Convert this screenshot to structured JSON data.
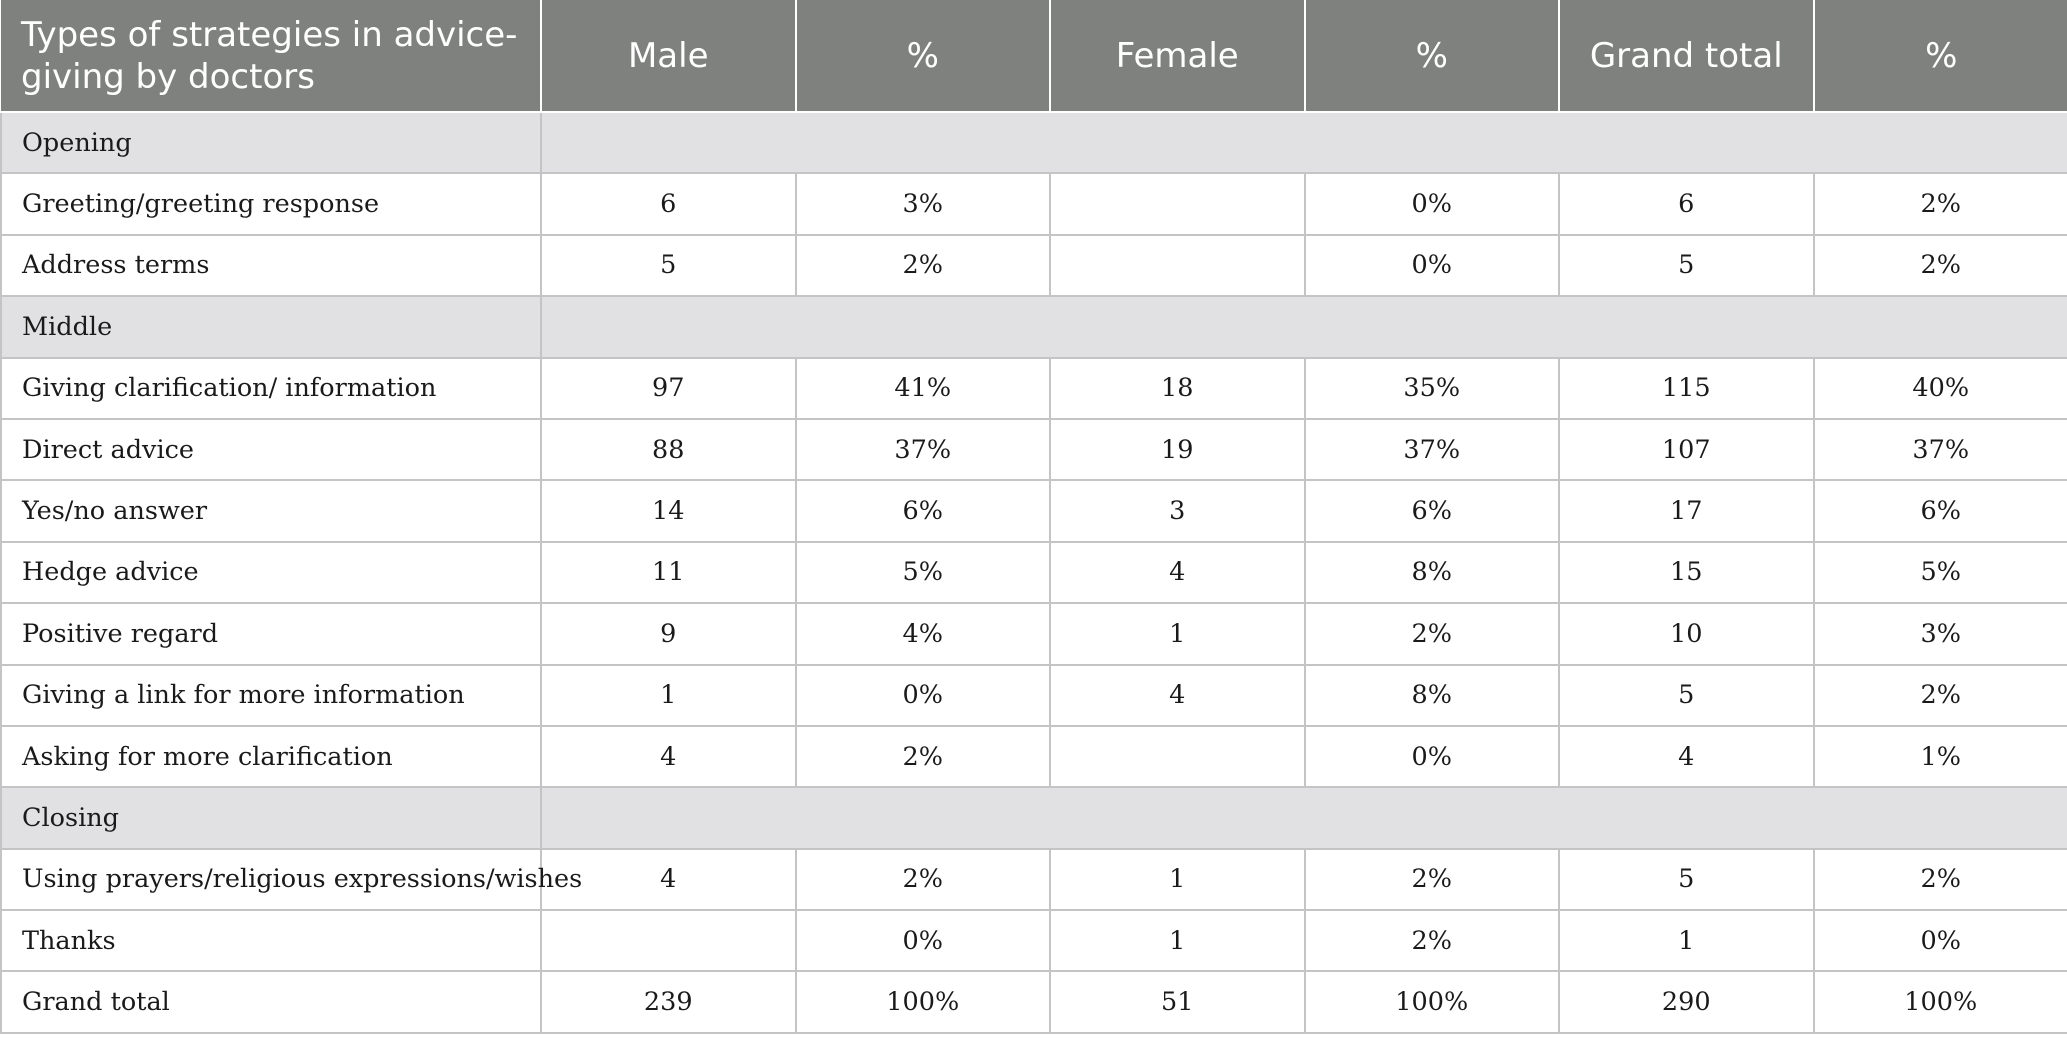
{
  "table": {
    "headers": [
      "Types of strategies in advice-giving by doctors",
      "Male",
      "%",
      "Female",
      "%",
      "Grand total",
      "%"
    ],
    "sections": {
      "opening": "Opening",
      "middle": "Middle",
      "closing": "Closing"
    },
    "rows": {
      "greeting": [
        "Greeting/greeting response",
        "6",
        "3%",
        "",
        "0%",
        "6",
        "2%"
      ],
      "address": [
        "Address terms",
        "5",
        "2%",
        "",
        "0%",
        "5",
        "2%"
      ],
      "clarification": [
        "Giving clarification/ information",
        "97",
        "41%",
        "18",
        "35%",
        "115",
        "40%"
      ],
      "direct": [
        "Direct advice",
        "88",
        "37%",
        "19",
        "37%",
        "107",
        "37%"
      ],
      "yesno": [
        "Yes/no answer",
        "14",
        "6%",
        "3",
        "6%",
        "17",
        "6%"
      ],
      "hedge": [
        "Hedge advice",
        "11",
        "5%",
        "4",
        "8%",
        "15",
        "5%"
      ],
      "positive": [
        "Positive regard",
        "9",
        "4%",
        "1",
        "2%",
        "10",
        "3%"
      ],
      "link": [
        "Giving a link for more information",
        "1",
        "0%",
        "4",
        "8%",
        "5",
        "2%"
      ],
      "asking": [
        "Asking for more clarification",
        "4",
        "2%",
        "",
        "0%",
        "4",
        "1%"
      ],
      "prayers": [
        "Using prayers/religious expressions/wishes",
        "4",
        "2%",
        "1",
        "2%",
        "5",
        "2%"
      ],
      "thanks": [
        "Thanks",
        "",
        "0%",
        "1",
        "2%",
        "1",
        "0%"
      ],
      "total": [
        "Grand total",
        "239",
        "100%",
        "51",
        "100%",
        "290",
        "100%"
      ]
    }
  },
  "colors": {
    "header_bg": "#7f817e",
    "header_text": "#ffffff",
    "section_bg": "#e1e0e2",
    "border": "#c4c4c4"
  }
}
